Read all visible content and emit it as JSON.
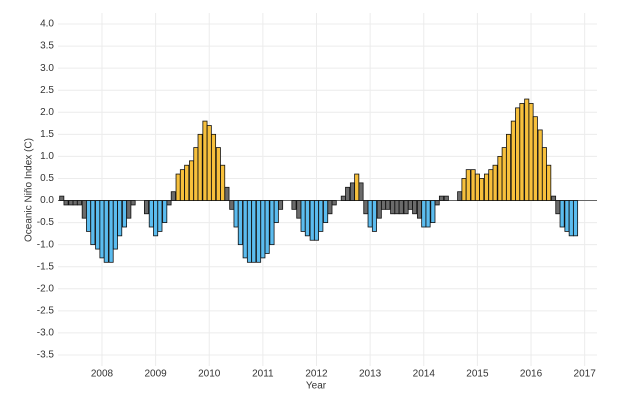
{
  "chart_data": {
    "type": "bar",
    "x_label": "Year",
    "y_label": "Oceanic Niño Index (C)",
    "x": [
      2007.25,
      2007.33,
      2007.42,
      2007.5,
      2007.58,
      2007.67,
      2007.75,
      2007.83,
      2007.92,
      2008,
      2008.08,
      2008.17,
      2008.25,
      2008.33,
      2008.42,
      2008.5,
      2008.58,
      2008.67,
      2008.75,
      2008.83,
      2008.92,
      2009,
      2009.08,
      2009.17,
      2009.25,
      2009.33,
      2009.42,
      2009.5,
      2009.58,
      2009.67,
      2009.75,
      2009.83,
      2009.92,
      2010,
      2010.08,
      2010.17,
      2010.25,
      2010.33,
      2010.42,
      2010.5,
      2010.58,
      2010.67,
      2010.75,
      2010.83,
      2010.92,
      2011,
      2011.08,
      2011.17,
      2011.25,
      2011.33,
      2011.42,
      2011.5,
      2011.58,
      2011.67,
      2011.75,
      2011.83,
      2011.92,
      2012,
      2012.08,
      2012.17,
      2012.25,
      2012.33,
      2012.42,
      2012.5,
      2012.58,
      2012.67,
      2012.75,
      2012.83,
      2012.92,
      2013,
      2013.08,
      2013.17,
      2013.25,
      2013.33,
      2013.42,
      2013.5,
      2013.58,
      2013.67,
      2013.75,
      2013.83,
      2013.92,
      2014,
      2014.08,
      2014.17,
      2014.25,
      2014.33,
      2014.42,
      2014.5,
      2014.58,
      2014.67,
      2014.75,
      2014.83,
      2014.92,
      2015,
      2015.08,
      2015.17,
      2015.25,
      2015.33,
      2015.42,
      2015.5,
      2015.58,
      2015.67,
      2015.75,
      2015.83,
      2015.92,
      2016,
      2016.08,
      2016.17,
      2016.25,
      2016.33,
      2016.42,
      2016.5,
      2016.58,
      2016.67,
      2016.75,
      2016.83
    ],
    "values": [
      0.1,
      -0.1,
      -0.1,
      -0.1,
      -0.1,
      -0.4,
      -0.7,
      -1.0,
      -1.1,
      -1.3,
      -1.4,
      -1.4,
      -1.1,
      -0.8,
      -0.6,
      -0.4,
      -0.1,
      0,
      0,
      -0.3,
      -0.6,
      -0.8,
      -0.7,
      -0.5,
      -0.1,
      0.2,
      0.6,
      0.7,
      0.8,
      0.9,
      1.2,
      1.5,
      1.8,
      1.7,
      1.5,
      1.2,
      0.8,
      0.3,
      -0.2,
      -0.6,
      -1.0,
      -1.3,
      -1.4,
      -1.4,
      -1.4,
      -1.3,
      -1.2,
      -1.0,
      -0.5,
      -0.2,
      0,
      0,
      -0.2,
      -0.4,
      -0.7,
      -0.8,
      -0.9,
      -0.9,
      -0.7,
      -0.5,
      -0.3,
      -0.1,
      0,
      0.1,
      0.3,
      0.4,
      0.6,
      0.4,
      -0.3,
      -0.6,
      -0.7,
      -0.4,
      -0.2,
      -0.2,
      -0.3,
      -0.3,
      -0.3,
      -0.3,
      -0.2,
      -0.3,
      -0.4,
      -0.6,
      -0.6,
      -0.5,
      -0.1,
      0.1,
      0.1,
      0,
      0,
      0.2,
      0.5,
      0.7,
      0.7,
      0.6,
      0.5,
      0.6,
      0.7,
      0.8,
      1.0,
      1.2,
      1.5,
      1.8,
      2.1,
      2.2,
      2.3,
      2.2,
      1.9,
      1.6,
      1.2,
      0.8,
      0.1,
      -0.3,
      -0.6,
      -0.7,
      -0.8,
      -0.8
    ],
    "colors": [
      "#6b6b6b",
      "#6b6b6b",
      "#6b6b6b",
      "#6b6b6b",
      "#6b6b6b",
      "#6b6b6b",
      "#5bbcef",
      "#5bbcef",
      "#5bbcef",
      "#5bbcef",
      "#5bbcef",
      "#5bbcef",
      "#5bbcef",
      "#5bbcef",
      "#5bbcef",
      "#6b6b6b",
      "#6b6b6b",
      "#6b6b6b",
      "#6b6b6b",
      "#6b6b6b",
      "#5bbcef",
      "#5bbcef",
      "#5bbcef",
      "#5bbcef",
      "#6b6b6b",
      "#6b6b6b",
      "#f7c03c",
      "#f7c03c",
      "#f7c03c",
      "#f7c03c",
      "#f7c03c",
      "#f7c03c",
      "#f7c03c",
      "#f7c03c",
      "#f7c03c",
      "#f7c03c",
      "#f7c03c",
      "#6b6b6b",
      "#6b6b6b",
      "#5bbcef",
      "#5bbcef",
      "#5bbcef",
      "#5bbcef",
      "#5bbcef",
      "#5bbcef",
      "#5bbcef",
      "#5bbcef",
      "#5bbcef",
      "#5bbcef",
      "#6b6b6b",
      "#6b6b6b",
      "#6b6b6b",
      "#6b6b6b",
      "#6b6b6b",
      "#5bbcef",
      "#5bbcef",
      "#5bbcef",
      "#5bbcef",
      "#5bbcef",
      "#5bbcef",
      "#6b6b6b",
      "#6b6b6b",
      "#6b6b6b",
      "#6b6b6b",
      "#6b6b6b",
      "#6b6b6b",
      "#f7c03c",
      "#6b6b6b",
      "#6b6b6b",
      "#5bbcef",
      "#5bbcef",
      "#6b6b6b",
      "#6b6b6b",
      "#6b6b6b",
      "#6b6b6b",
      "#6b6b6b",
      "#6b6b6b",
      "#6b6b6b",
      "#6b6b6b",
      "#6b6b6b",
      "#6b6b6b",
      "#5bbcef",
      "#5bbcef",
      "#5bbcef",
      "#6b6b6b",
      "#6b6b6b",
      "#6b6b6b",
      "#6b6b6b",
      "#6b6b6b",
      "#6b6b6b",
      "#f7c03c",
      "#f7c03c",
      "#f7c03c",
      "#f7c03c",
      "#f7c03c",
      "#f7c03c",
      "#f7c03c",
      "#f7c03c",
      "#f7c03c",
      "#f7c03c",
      "#f7c03c",
      "#f7c03c",
      "#f7c03c",
      "#f7c03c",
      "#f7c03c",
      "#f7c03c",
      "#f7c03c",
      "#f7c03c",
      "#f7c03c",
      "#f7c03c",
      "#6b6b6b",
      "#6b6b6b",
      "#5bbcef",
      "#5bbcef",
      "#5bbcef",
      "#5bbcef"
    ],
    "xlim": [
      2007.18,
      2017.23
    ],
    "xticks": [
      2008,
      2009,
      2010,
      2011,
      2012,
      2013,
      2014,
      2015,
      2016,
      2017
    ],
    "ylim": [
      -3.75,
      4.25
    ],
    "yticks": [
      {
        "value": -3.5,
        "label": "-3.5"
      },
      {
        "value": -3,
        "label": "-3.0"
      },
      {
        "value": -2.5,
        "label": "-2.5"
      },
      {
        "value": -2,
        "label": "-2.0"
      },
      {
        "value": -1.5,
        "label": "-1.5"
      },
      {
        "value": -1,
        "label": "-1.0"
      },
      {
        "value": -0.5,
        "label": "-0.5"
      },
      {
        "value": 0,
        "label": "0.0"
      },
      {
        "value": 0.5,
        "label": "0.5"
      },
      {
        "value": 1,
        "label": "1.0"
      },
      {
        "value": 1.5,
        "label": "1.5"
      },
      {
        "value": 2,
        "label": "2.0"
      },
      {
        "value": 2.5,
        "label": "2.5"
      },
      {
        "value": 3,
        "label": "3.0"
      },
      {
        "value": 3.5,
        "label": "3.5"
      },
      {
        "value": 4,
        "label": "4.0"
      }
    ],
    "grid": true
  }
}
